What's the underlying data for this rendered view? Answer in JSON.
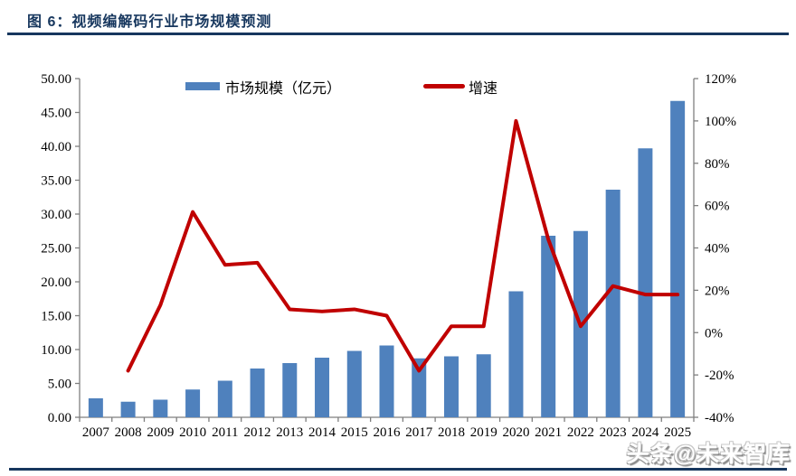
{
  "header": {
    "title": "图 6：视频编解码行业市场规模预测"
  },
  "legend": {
    "bar_label": "市场规模（亿元）",
    "line_label": "增速"
  },
  "watermark": "头条@未来智库",
  "colors": {
    "bar": "#4F81BD",
    "line": "#C00000",
    "accent_navy": "#17375E",
    "axis": "#7f7f7f",
    "label_text": "#000000"
  },
  "chart_data": {
    "type": "bar",
    "subtype": "bar+line combo, dual axis",
    "title": "视频编解码行业市场规模预测",
    "categories": [
      "2007",
      "2008",
      "2009",
      "2010",
      "2011",
      "2012",
      "2013",
      "2014",
      "2015",
      "2016",
      "2017",
      "2018",
      "2019",
      "2020",
      "2021",
      "2022",
      "2023",
      "2024",
      "2025"
    ],
    "series": [
      {
        "name": "市场规模（亿元）",
        "type": "bar",
        "axis": "left",
        "values": [
          2.8,
          2.3,
          2.6,
          4.1,
          5.4,
          7.2,
          8.0,
          8.8,
          9.8,
          10.6,
          8.7,
          9.0,
          9.3,
          18.6,
          26.8,
          27.5,
          33.6,
          39.7,
          46.7
        ]
      },
      {
        "name": "增速",
        "type": "line",
        "axis": "right",
        "unit": "percent",
        "values": [
          null,
          -18,
          13,
          57,
          32,
          33,
          11,
          10,
          11,
          8,
          -18,
          3,
          3,
          100,
          44,
          3,
          22,
          18,
          18
        ]
      }
    ],
    "left_axis": {
      "min": 0,
      "max": 50,
      "step": 5,
      "format": "two_decimals"
    },
    "right_axis": {
      "min": -40,
      "max": 120,
      "step": 20,
      "format": "percent"
    },
    "legend_position": "top-center",
    "gridlines": false
  }
}
